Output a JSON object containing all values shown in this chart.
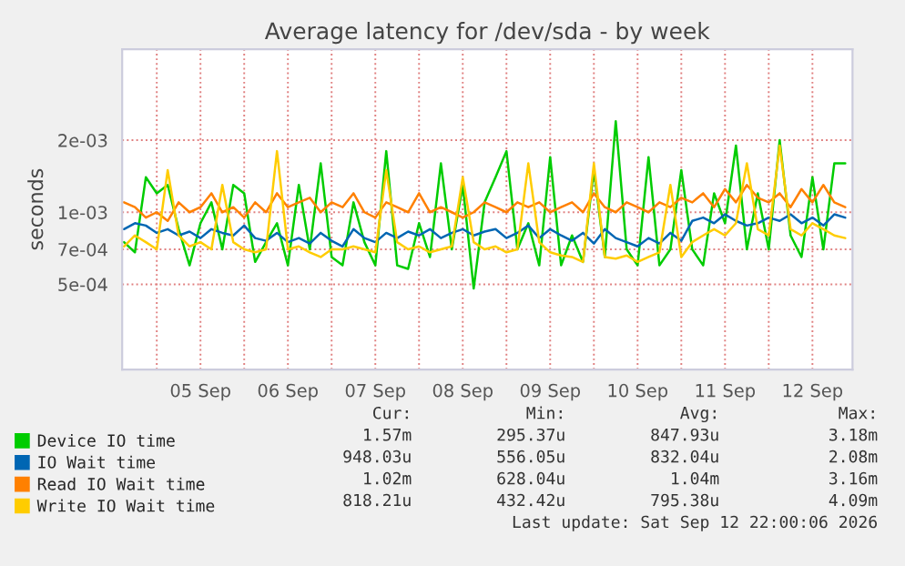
{
  "chart_data": {
    "type": "line",
    "title": "Average latency for /dev/sda - by week",
    "ylabel": "seconds",
    "log": "y",
    "grid": true,
    "legend": "bottom",
    "marker": "none",
    "line_style": "solid",
    "xlim": [
      "2026-09-04T14:30",
      "2026-09-12T23:00"
    ],
    "xticks": [
      {
        "value": "2026-09-05T00:00",
        "label": null
      },
      {
        "value": "2026-09-05T12:00",
        "label": "05 Sep"
      },
      {
        "value": "2026-09-06T00:00",
        "label": null
      },
      {
        "value": "2026-09-06T12:00",
        "label": "06 Sep"
      },
      {
        "value": "2026-09-07T00:00",
        "label": null
      },
      {
        "value": "2026-09-07T12:00",
        "label": "07 Sep"
      },
      {
        "value": "2026-09-08T00:00",
        "label": null
      },
      {
        "value": "2026-09-08T12:00",
        "label": "08 Sep"
      },
      {
        "value": "2026-09-09T00:00",
        "label": null
      },
      {
        "value": "2026-09-09T12:00",
        "label": "09 Sep"
      },
      {
        "value": "2026-09-10T00:00",
        "label": null
      },
      {
        "value": "2026-09-10T12:00",
        "label": "10 Sep"
      },
      {
        "value": "2026-09-11T00:00",
        "label": null
      },
      {
        "value": "2026-09-11T12:00",
        "label": "11 Sep"
      },
      {
        "value": "2026-09-12T00:00",
        "label": null
      },
      {
        "value": "2026-09-12T12:00",
        "label": "12 Sep"
      }
    ],
    "ylim": [
      0.00022,
      0.0048
    ],
    "yticks": [
      {
        "value": 0.0005,
        "label": "5e-04"
      },
      {
        "value": 0.0007,
        "label": "7e-04"
      },
      {
        "value": 0.001,
        "label": "1e-03"
      },
      {
        "value": 0.002,
        "label": "2e-03"
      }
    ],
    "x": [
      "2026-09-04T15:00",
      "2026-09-04T18:00",
      "2026-09-04T21:00",
      "2026-09-05T00:00",
      "2026-09-05T03:00",
      "2026-09-05T06:00",
      "2026-09-05T09:00",
      "2026-09-05T12:00",
      "2026-09-05T15:00",
      "2026-09-05T18:00",
      "2026-09-05T21:00",
      "2026-09-06T00:00",
      "2026-09-06T03:00",
      "2026-09-06T06:00",
      "2026-09-06T09:00",
      "2026-09-06T12:00",
      "2026-09-06T15:00",
      "2026-09-06T18:00",
      "2026-09-06T21:00",
      "2026-09-07T00:00",
      "2026-09-07T03:00",
      "2026-09-07T06:00",
      "2026-09-07T09:00",
      "2026-09-07T12:00",
      "2026-09-07T15:00",
      "2026-09-07T18:00",
      "2026-09-07T21:00",
      "2026-09-08T00:00",
      "2026-09-08T03:00",
      "2026-09-08T06:00",
      "2026-09-08T09:00",
      "2026-09-08T12:00",
      "2026-09-08T15:00",
      "2026-09-08T18:00",
      "2026-09-08T21:00",
      "2026-09-09T00:00",
      "2026-09-09T03:00",
      "2026-09-09T06:00",
      "2026-09-09T09:00",
      "2026-09-09T12:00",
      "2026-09-09T15:00",
      "2026-09-09T18:00",
      "2026-09-09T21:00",
      "2026-09-10T00:00",
      "2026-09-10T03:00",
      "2026-09-10T06:00",
      "2026-09-10T09:00",
      "2026-09-10T12:00",
      "2026-09-10T15:00",
      "2026-09-10T18:00",
      "2026-09-10T21:00",
      "2026-09-11T00:00",
      "2026-09-11T03:00",
      "2026-09-11T06:00",
      "2026-09-11T09:00",
      "2026-09-11T12:00",
      "2026-09-11T15:00",
      "2026-09-11T18:00",
      "2026-09-11T21:00",
      "2026-09-12T00:00",
      "2026-09-12T03:00",
      "2026-09-12T06:00",
      "2026-09-12T09:00",
      "2026-09-12T12:00",
      "2026-09-12T15:00",
      "2026-09-12T18:00",
      "2026-09-12T21:00"
    ],
    "series": [
      {
        "name": "Device IO time",
        "color": "#00cc00",
        "values": [
          0.00075,
          0.00068,
          0.0014,
          0.0012,
          0.0013,
          0.00085,
          0.0006,
          0.0009,
          0.0011,
          0.0007,
          0.0013,
          0.0012,
          0.00062,
          0.00075,
          0.0009,
          0.0006,
          0.0013,
          0.0007,
          0.0016,
          0.00065,
          0.0006,
          0.0011,
          0.00075,
          0.0006,
          0.0018,
          0.0006,
          0.00058,
          0.0009,
          0.00065,
          0.0016,
          0.0007,
          0.0013,
          0.00048,
          0.0011,
          0.0014,
          0.0018,
          0.0007,
          0.0009,
          0.0006,
          0.0017,
          0.0006,
          0.0008,
          0.00062,
          0.0015,
          0.00065,
          0.0024,
          0.0007,
          0.0006,
          0.0017,
          0.0006,
          0.0007,
          0.0015,
          0.0007,
          0.0006,
          0.0012,
          0.0009,
          0.0019,
          0.0007,
          0.0012,
          0.0007,
          0.002,
          0.0008,
          0.00065,
          0.0014,
          0.0007,
          0.0016,
          0.0016
        ]
      },
      {
        "name": "IO Wait time",
        "color": "#0066b3",
        "values": [
          0.00085,
          0.0009,
          0.00088,
          0.00082,
          0.00085,
          0.0008,
          0.00083,
          0.00078,
          0.00085,
          0.00082,
          0.0008,
          0.00088,
          0.00078,
          0.00076,
          0.00082,
          0.00075,
          0.00078,
          0.00074,
          0.00082,
          0.00076,
          0.00072,
          0.00085,
          0.00078,
          0.00075,
          0.00082,
          0.00078,
          0.00083,
          0.0008,
          0.00085,
          0.00078,
          0.00082,
          0.00085,
          0.0008,
          0.00083,
          0.00085,
          0.00078,
          0.00082,
          0.00088,
          0.00078,
          0.00085,
          0.0008,
          0.00076,
          0.00082,
          0.00074,
          0.00085,
          0.00078,
          0.00075,
          0.00072,
          0.00078,
          0.00074,
          0.00082,
          0.00076,
          0.00092,
          0.00095,
          0.0009,
          0.00098,
          0.00092,
          0.00088,
          0.0009,
          0.00095,
          0.00092,
          0.00098,
          0.0009,
          0.00095,
          0.00088,
          0.00098,
          0.00095
        ]
      },
      {
        "name": "Read IO Wait time",
        "color": "#ff8000",
        "values": [
          0.0011,
          0.00105,
          0.00095,
          0.001,
          0.00092,
          0.0011,
          0.001,
          0.00105,
          0.0012,
          0.001,
          0.00105,
          0.00095,
          0.0011,
          0.001,
          0.0012,
          0.00105,
          0.0011,
          0.00115,
          0.001,
          0.0011,
          0.00105,
          0.0012,
          0.001,
          0.00095,
          0.0011,
          0.00105,
          0.001,
          0.0012,
          0.001,
          0.00105,
          0.001,
          0.00095,
          0.001,
          0.0011,
          0.00105,
          0.001,
          0.0011,
          0.00105,
          0.0011,
          0.001,
          0.00105,
          0.0011,
          0.001,
          0.0012,
          0.00105,
          0.001,
          0.0011,
          0.00105,
          0.001,
          0.0011,
          0.00105,
          0.00115,
          0.0011,
          0.0012,
          0.00105,
          0.00125,
          0.0011,
          0.0013,
          0.00115,
          0.0011,
          0.0012,
          0.00105,
          0.00125,
          0.0011,
          0.0013,
          0.0011,
          0.00105
        ]
      },
      {
        "name": "Write IO Wait time",
        "color": "#ffcc00",
        "values": [
          0.00072,
          0.0008,
          0.00075,
          0.0007,
          0.0015,
          0.0008,
          0.00072,
          0.00075,
          0.0007,
          0.0013,
          0.00075,
          0.0007,
          0.00068,
          0.0007,
          0.0018,
          0.0007,
          0.00072,
          0.00068,
          0.00065,
          0.0007,
          0.0007,
          0.00072,
          0.0007,
          0.00068,
          0.0015,
          0.00075,
          0.0007,
          0.00072,
          0.00068,
          0.0007,
          0.00072,
          0.0014,
          0.00075,
          0.0007,
          0.00072,
          0.00068,
          0.0007,
          0.0016,
          0.00075,
          0.00068,
          0.00066,
          0.00065,
          0.00062,
          0.0016,
          0.00065,
          0.00064,
          0.00066,
          0.00062,
          0.00065,
          0.00068,
          0.0013,
          0.00065,
          0.00075,
          0.0008,
          0.00085,
          0.0008,
          0.0009,
          0.0016,
          0.00085,
          0.0008,
          0.0019,
          0.00085,
          0.0008,
          0.0009,
          0.00085,
          0.0008,
          0.00078
        ]
      }
    ],
    "annotations": [
      "Cur:",
      "Min:",
      "Avg:",
      "Max:",
      "1.57m",
      "295.37u",
      "847.93u",
      "3.18m",
      "948.03u",
      "556.05u",
      "832.04u",
      "2.08m",
      "1.02m",
      "628.04u",
      "1.04m",
      "3.16m",
      "818.21u",
      "432.42u",
      "795.38u",
      "4.09m",
      "Last update: Sat Sep 12 22:00:06 2026"
    ]
  }
}
